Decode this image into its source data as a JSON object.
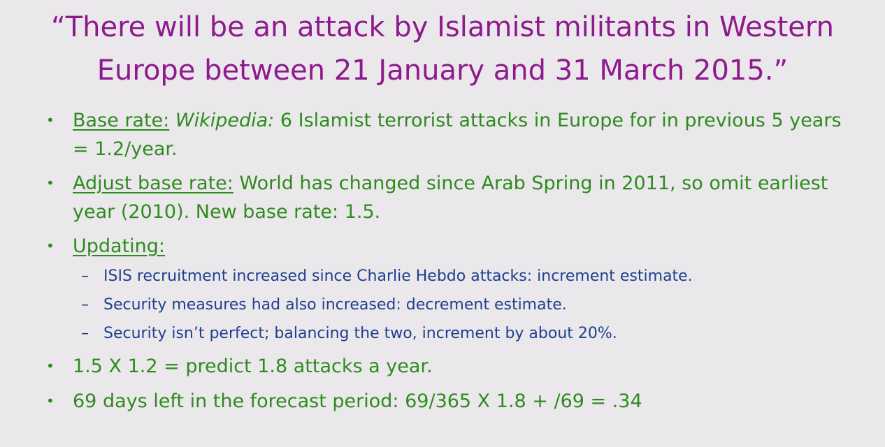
{
  "title": "“There will be an attack by Islamist militants in Western Europe between 21 January and 31 March 2015.”",
  "bullets": {
    "b1": {
      "label": "Base rate:",
      "source": "Wikipedia:",
      "text": "6 Islamist terrorist attacks in Europe for in previous 5 years = 1.2/year."
    },
    "b2": {
      "label": "Adjust base rate:",
      "text": "World has changed since Arab Spring in 2011, so omit earliest year (2010). New base rate: 1.5."
    },
    "b3": {
      "label": "Updating:",
      "subs": [
        "ISIS recruitment increased since Charlie Hebdo attacks: increment estimate.",
        "Security measures had also increased: decrement estimate.",
        "Security isn’t perfect; balancing the two, increment by about 20%."
      ]
    },
    "b4": {
      "text": "1.5 X 1.2 = predict 1.8 attacks a year."
    },
    "b5": {
      "text": "69 days left in the forecast period: 69/365 X 1.8 + /69 = .34"
    }
  },
  "symbols": {
    "bullet": "•",
    "dash": "–"
  },
  "colors": {
    "title": "#8e1a8e",
    "bullet_text": "#2e8b1f",
    "sub_text": "#1f3f8f",
    "background": "#ebe8eb"
  }
}
